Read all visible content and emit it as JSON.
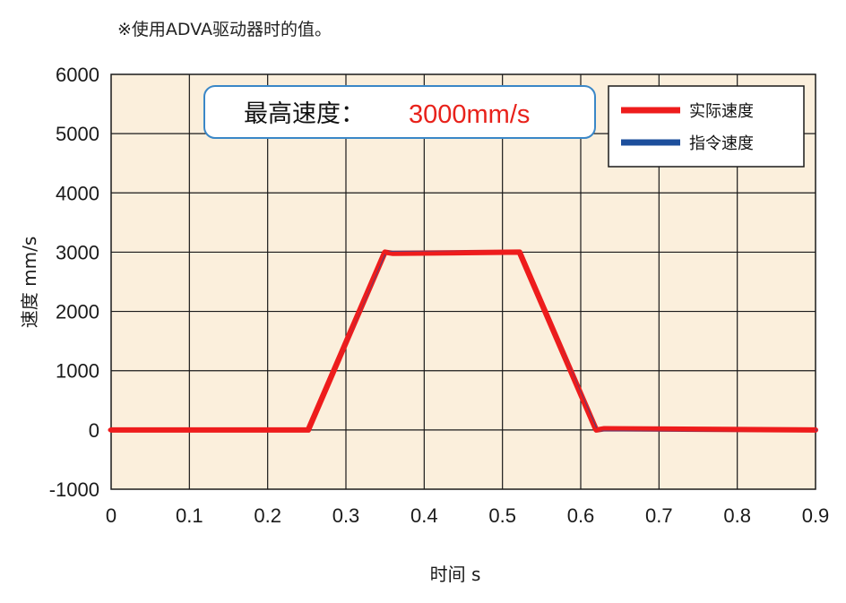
{
  "note": "※使用ADVA驱动器时的值。",
  "annotation": {
    "label": "最高速度：",
    "value": "3000mm/s"
  },
  "colors": {
    "actual": "#ee1c1c",
    "command": "#1d4f9c",
    "plot_bg": "#fbefdc",
    "grid": "#1a1a1a"
  },
  "chart_data": {
    "type": "line",
    "title": "",
    "xlabel": "时间 s",
    "ylabel": "速度 mm/s",
    "xlim": [
      0,
      0.9
    ],
    "ylim": [
      -1000,
      6000
    ],
    "x_ticks": [
      "0",
      "0.1",
      "0.2",
      "0.3",
      "0.4",
      "0.5",
      "0.6",
      "0.7",
      "0.8",
      "0.9"
    ],
    "y_ticks": [
      "-1000",
      "0",
      "1000",
      "2000",
      "3000",
      "4000",
      "5000",
      "6000"
    ],
    "grid": true,
    "legend_position": "top-right",
    "series": [
      {
        "name": "实际速度",
        "x": [
          0,
          0.25,
          0.252,
          0.35,
          0.36,
          0.52,
          0.522,
          0.62,
          0.63,
          0.9
        ],
        "y": [
          0,
          0,
          0,
          3000,
          2980,
          3000,
          3000,
          0,
          20,
          0
        ]
      },
      {
        "name": "指令速度",
        "x": [
          0,
          0.25,
          0.35,
          0.52,
          0.62,
          0.9
        ],
        "y": [
          0,
          0,
          3000,
          3000,
          0,
          0
        ]
      }
    ]
  }
}
